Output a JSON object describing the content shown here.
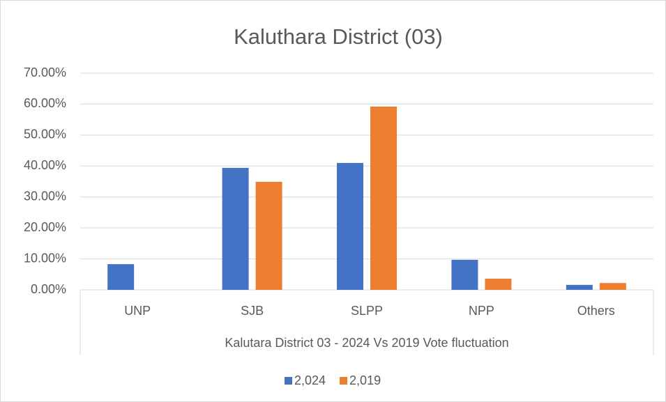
{
  "chart_data": {
    "type": "bar",
    "title": "Kaluthara District (03)",
    "x_label": "Kalutara District 03 - 2024 Vs 2019 Vote fluctuation",
    "categories": [
      "UNP",
      "SJB",
      "SLPP",
      "NPP",
      "Others"
    ],
    "series": [
      {
        "name": "2,024",
        "color": "#4472c4",
        "values": [
          8.3,
          39.4,
          41.0,
          9.7,
          1.6
        ]
      },
      {
        "name": "2,019",
        "color": "#ed7d31",
        "values": [
          0,
          34.9,
          59.2,
          3.6,
          2.2
        ]
      }
    ],
    "ylim": [
      0,
      70
    ],
    "yticks": [
      {
        "value": 0,
        "label": "0.00%"
      },
      {
        "value": 10,
        "label": "10.00%"
      },
      {
        "value": 20,
        "label": "20.00%"
      },
      {
        "value": 30,
        "label": "30.00%"
      },
      {
        "value": 40,
        "label": "40.00%"
      },
      {
        "value": 50,
        "label": "50.00%"
      },
      {
        "value": 60,
        "label": "60.00%"
      },
      {
        "value": 70,
        "label": "70.00%"
      }
    ],
    "grid": true,
    "legend": "bottom"
  }
}
